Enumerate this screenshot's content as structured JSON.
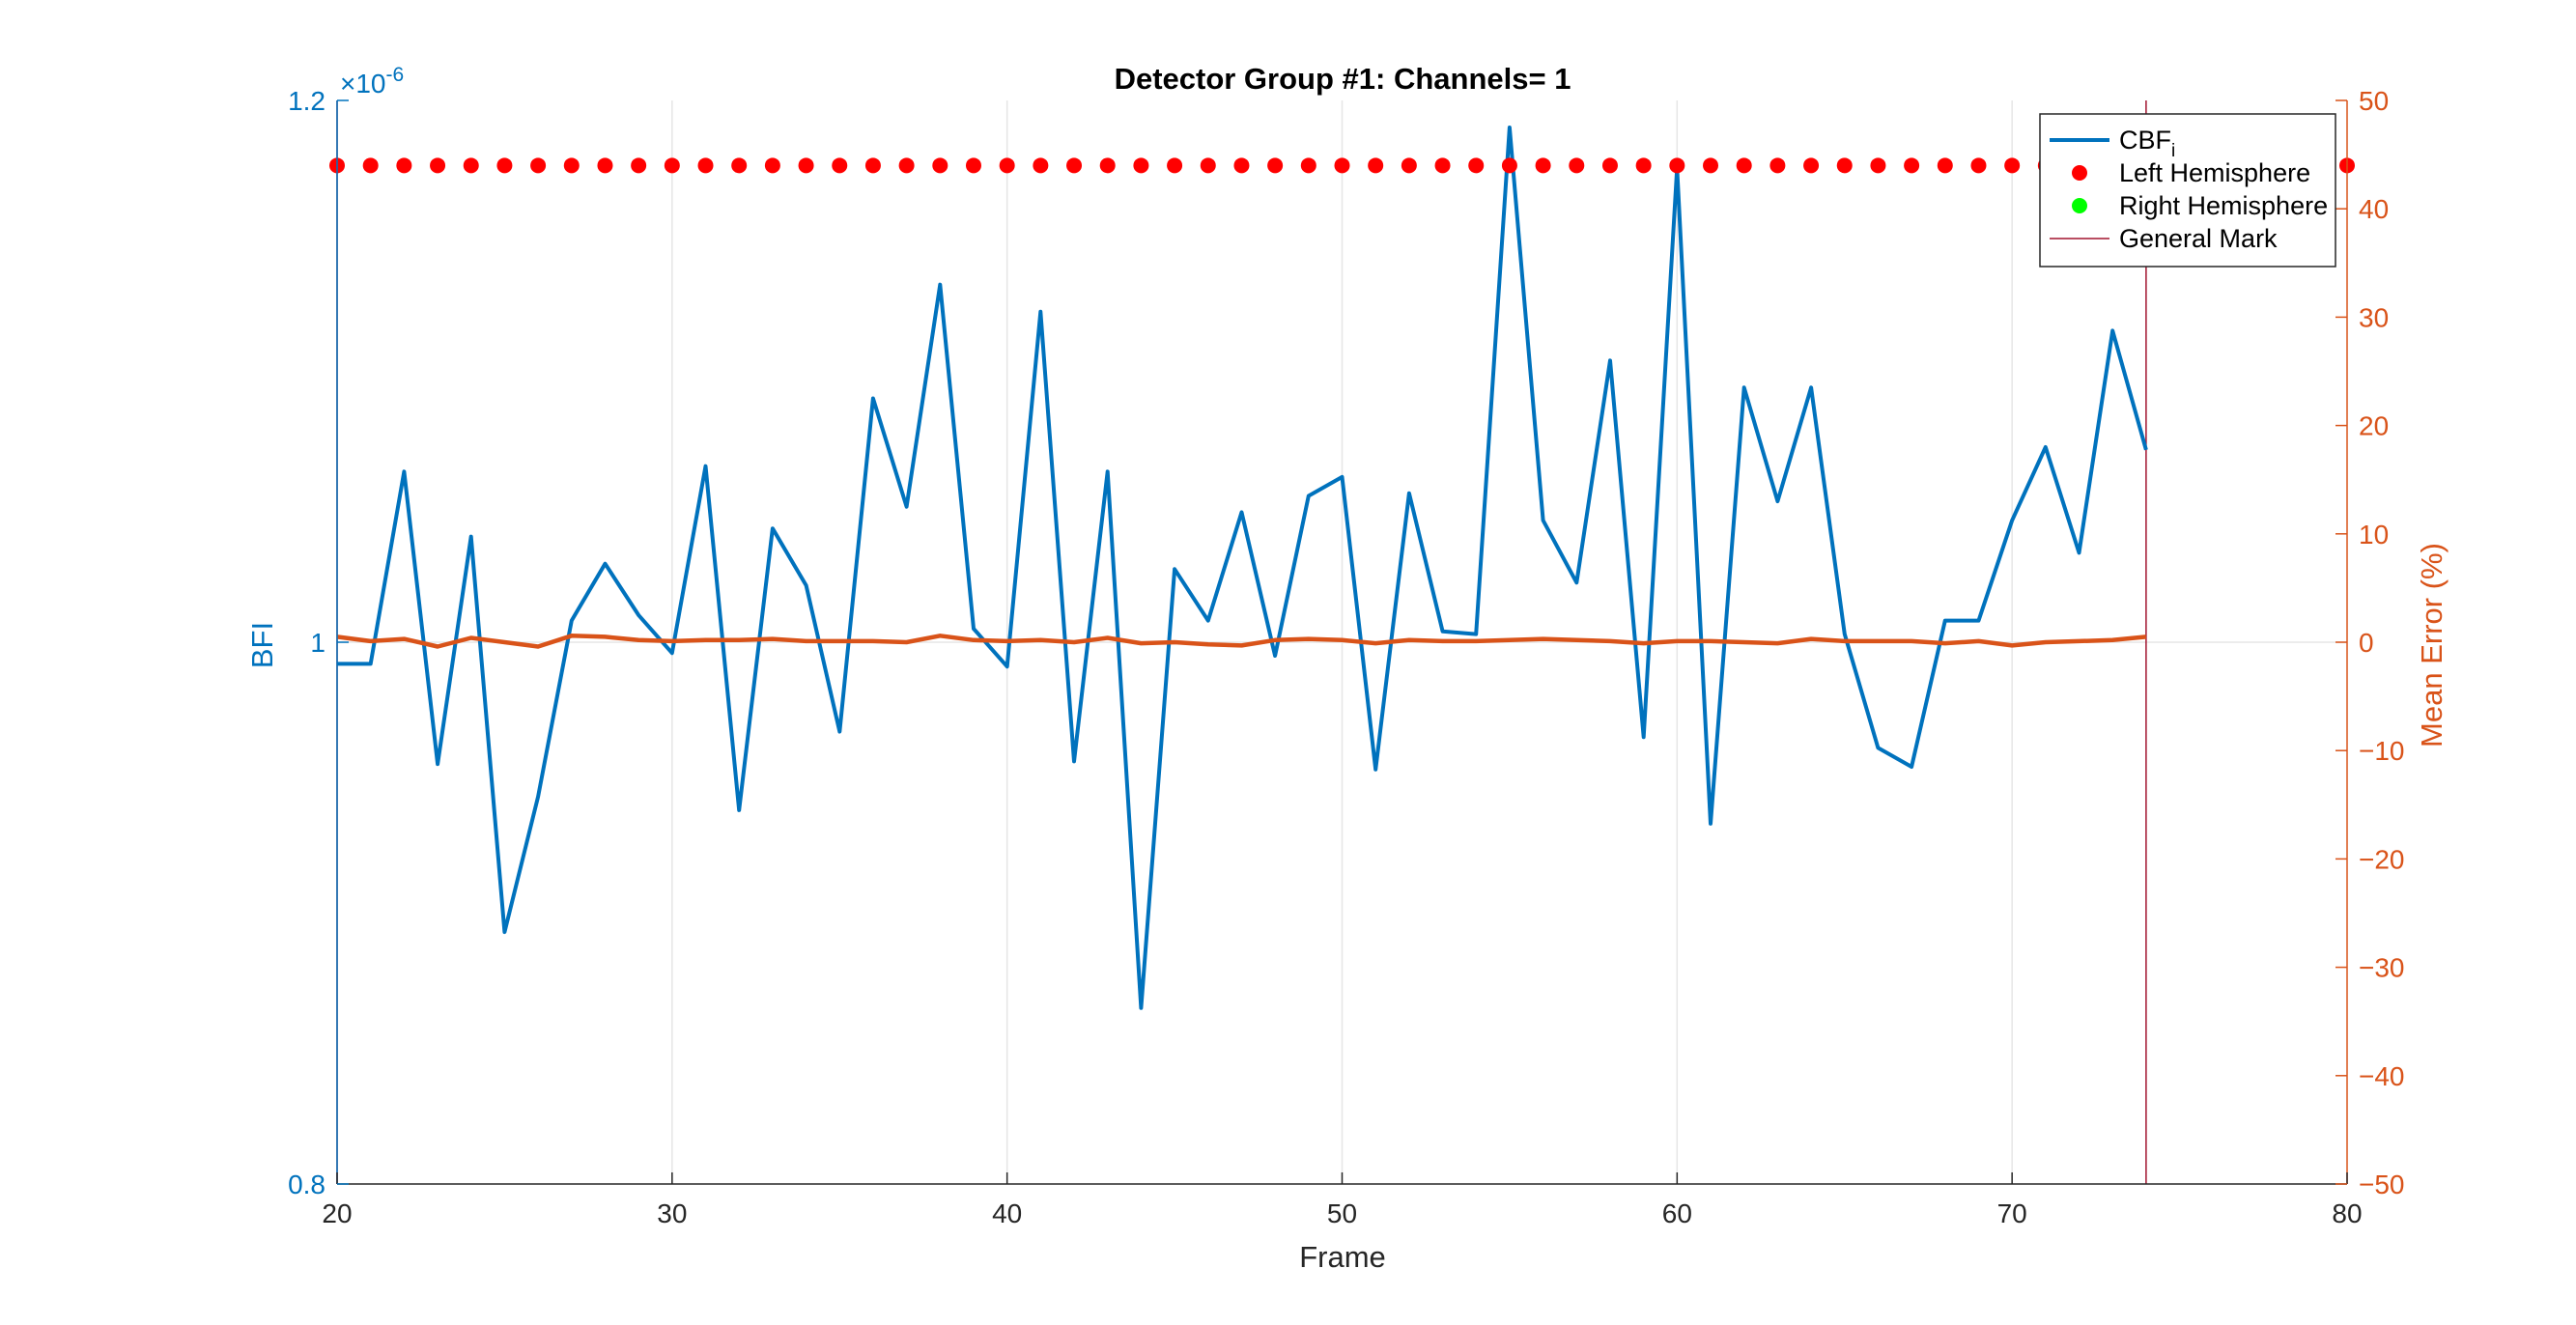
{
  "chart_data": {
    "type": "line",
    "title": "Detector Group #1: Channels= 1",
    "xlabel": "Frame",
    "ylabel_left": "BFI",
    "ylabel_right": "Mean Error (%)",
    "exponent_prefix": "×10",
    "exponent_power": "-6",
    "xlim": [
      20,
      80
    ],
    "ylim_left": [
      0.8,
      1.2
    ],
    "ylim_right": [
      -50,
      50
    ],
    "xticks": [
      20,
      30,
      40,
      50,
      60,
      70,
      80
    ],
    "yticks_left": [
      0.8,
      1,
      1.2
    ],
    "ytick_labels_left": [
      "0.8",
      "1",
      "1.2"
    ],
    "yticks_right": [
      -50,
      -40,
      -30,
      -20,
      -10,
      0,
      10,
      20,
      30,
      40,
      50
    ],
    "grid": "x-only",
    "colors": {
      "cbf": "#0072BD",
      "error": "#D95319",
      "left_hemisphere": "#FF0000",
      "right_hemisphere": "#00FF00",
      "general_mark": "#A2142F"
    },
    "legend": {
      "position": "top-right",
      "entries": [
        {
          "label": "CBF",
          "subscript": "i",
          "marker": "line"
        },
        {
          "label": "Left Hemisphere",
          "marker": "dot"
        },
        {
          "label": "Right Hemisphere",
          "marker": "dot"
        },
        {
          "label": "General Mark",
          "marker": "thin-line"
        }
      ]
    },
    "series": [
      {
        "name": "CBFi",
        "axis": "left",
        "x": [
          20,
          21,
          22,
          23,
          24,
          25,
          26,
          27,
          28,
          29,
          30,
          31,
          32,
          33,
          34,
          35,
          36,
          37,
          38,
          39,
          40,
          41,
          42,
          43,
          44,
          45,
          46,
          47,
          48,
          49,
          50,
          51,
          52,
          53,
          54,
          55,
          56,
          57,
          58,
          59,
          60,
          61,
          62,
          63,
          64,
          65,
          66,
          67,
          68,
          69,
          70,
          71,
          72,
          73,
          74
        ],
        "y": [
          0.992,
          0.992,
          1.063,
          0.955,
          1.039,
          0.893,
          0.943,
          1.008,
          1.029,
          1.01,
          0.996,
          1.065,
          0.938,
          1.042,
          1.021,
          0.967,
          1.09,
          1.05,
          1.132,
          1.005,
          0.991,
          1.122,
          0.956,
          1.063,
          0.865,
          1.027,
          1.008,
          1.048,
          0.995,
          1.054,
          1.061,
          0.953,
          1.055,
          1.004,
          1.003,
          1.19,
          1.045,
          1.022,
          1.104,
          0.965,
          1.175,
          0.933,
          1.094,
          1.052,
          1.094,
          1.003,
          0.961,
          0.954,
          1.008,
          1.008,
          1.045,
          1.072,
          1.033,
          1.115,
          1.071
        ]
      },
      {
        "name": "Mean Error",
        "axis": "right",
        "x": [
          20,
          21,
          22,
          23,
          24,
          25,
          26,
          27,
          28,
          29,
          30,
          31,
          32,
          33,
          34,
          35,
          36,
          37,
          38,
          39,
          40,
          41,
          42,
          43,
          44,
          45,
          46,
          47,
          48,
          49,
          50,
          51,
          52,
          53,
          54,
          55,
          56,
          57,
          58,
          59,
          60,
          61,
          62,
          63,
          64,
          65,
          66,
          67,
          68,
          69,
          70,
          71,
          72,
          73,
          74
        ],
        "y": [
          0.5,
          0.1,
          0.3,
          -0.4,
          0.4,
          0.0,
          -0.4,
          0.6,
          0.5,
          0.2,
          0.1,
          0.2,
          0.2,
          0.3,
          0.1,
          0.1,
          0.1,
          0.0,
          0.6,
          0.2,
          0.1,
          0.2,
          0.0,
          0.4,
          -0.1,
          0.0,
          -0.2,
          -0.3,
          0.2,
          0.3,
          0.2,
          -0.1,
          0.2,
          0.1,
          0.1,
          0.2,
          0.3,
          0.2,
          0.1,
          -0.1,
          0.1,
          0.1,
          0.0,
          -0.1,
          0.3,
          0.1,
          0.1,
          0.1,
          -0.1,
          0.1,
          -0.3,
          0.0,
          0.1,
          0.2,
          0.5
        ]
      },
      {
        "name": "Left Hemisphere",
        "axis": "right",
        "marker": "dot",
        "x": [
          20,
          21,
          22,
          23,
          24,
          25,
          26,
          27,
          28,
          29,
          30,
          31,
          32,
          33,
          34,
          35,
          36,
          37,
          38,
          39,
          40,
          41,
          42,
          43,
          44,
          45,
          46,
          47,
          48,
          49,
          50,
          51,
          52,
          53,
          54,
          55,
          56,
          57,
          58,
          59,
          60,
          61,
          62,
          63,
          64,
          65,
          66,
          67,
          68,
          69,
          70,
          71,
          72,
          73,
          74,
          75,
          76,
          77,
          78,
          79,
          80
        ],
        "y": 44
      },
      {
        "name": "General Mark",
        "axis": "x",
        "marker": "vline",
        "x": [
          20,
          74
        ]
      }
    ]
  }
}
